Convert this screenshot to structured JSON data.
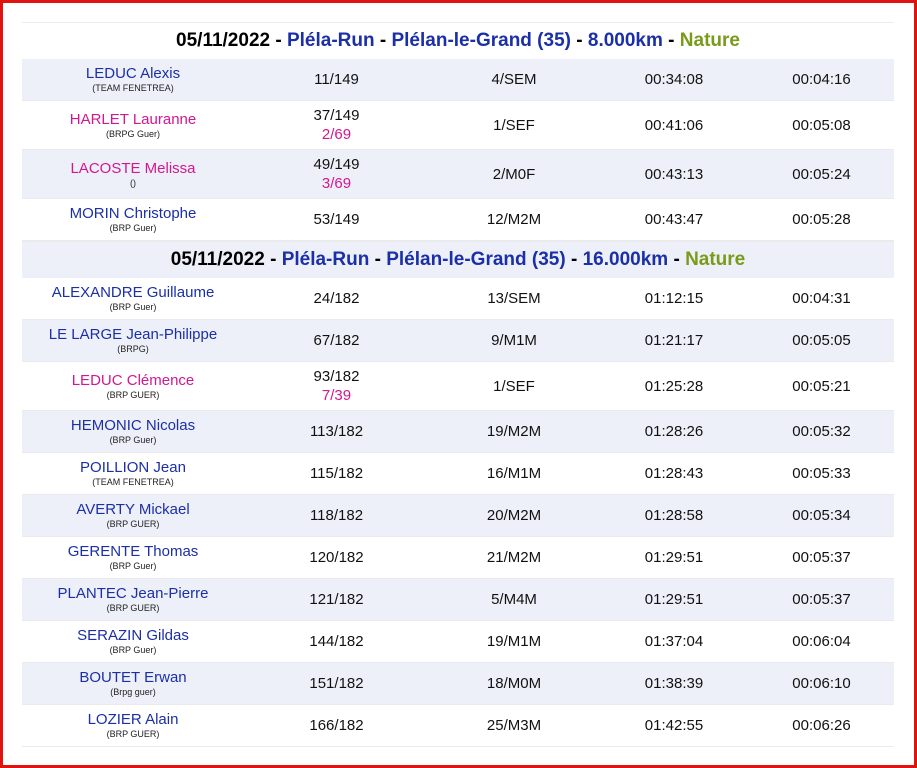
{
  "sections": [
    {
      "date": "05/11/2022",
      "race": "Pléla-Run",
      "place": "Plélan-le-Grand (35)",
      "distance": "8.000km",
      "type": "Nature",
      "rows": [
        {
          "name": "LEDUC Alexis",
          "club": "(TEAM FENETREA)",
          "rank": "11/149",
          "rank2": "",
          "cat": "4/SEM",
          "time": "00:34:08",
          "pace": "00:04:16",
          "f": false
        },
        {
          "name": "HARLET Lauranne",
          "club": "(BRPG Guer)",
          "rank": "37/149",
          "rank2": "2/69",
          "cat": "1/SEF",
          "time": "00:41:06",
          "pace": "00:05:08",
          "f": true
        },
        {
          "name": "LACOSTE Melissa",
          "club": "()",
          "rank": "49/149",
          "rank2": "3/69",
          "cat": "2/M0F",
          "time": "00:43:13",
          "pace": "00:05:24",
          "f": true
        },
        {
          "name": "MORIN Christophe",
          "club": "(BRP Guer)",
          "rank": "53/149",
          "rank2": "",
          "cat": "12/M2M",
          "time": "00:43:47",
          "pace": "00:05:28",
          "f": false
        }
      ]
    },
    {
      "date": "05/11/2022",
      "race": "Pléla-Run",
      "place": "Plélan-le-Grand (35)",
      "distance": "16.000km",
      "type": "Nature",
      "rows": [
        {
          "name": "ALEXANDRE Guillaume",
          "club": "(BRP Guer)",
          "rank": "24/182",
          "rank2": "",
          "cat": "13/SEM",
          "time": "01:12:15",
          "pace": "00:04:31",
          "f": false
        },
        {
          "name": "LE LARGE Jean-Philippe",
          "club": "(BRPG)",
          "rank": "67/182",
          "rank2": "",
          "cat": "9/M1M",
          "time": "01:21:17",
          "pace": "00:05:05",
          "f": false
        },
        {
          "name": "LEDUC Clémence",
          "club": "(BRP GUER)",
          "rank": "93/182",
          "rank2": "7/39",
          "cat": "1/SEF",
          "time": "01:25:28",
          "pace": "00:05:21",
          "f": true
        },
        {
          "name": "HEMONIC Nicolas",
          "club": "(BRP Guer)",
          "rank": "113/182",
          "rank2": "",
          "cat": "19/M2M",
          "time": "01:28:26",
          "pace": "00:05:32",
          "f": false
        },
        {
          "name": "POILLION Jean",
          "club": "(TEAM FENETREA)",
          "rank": "115/182",
          "rank2": "",
          "cat": "16/M1M",
          "time": "01:28:43",
          "pace": "00:05:33",
          "f": false
        },
        {
          "name": "AVERTY Mickael",
          "club": "(BRP GUER)",
          "rank": "118/182",
          "rank2": "",
          "cat": "20/M2M",
          "time": "01:28:58",
          "pace": "00:05:34",
          "f": false
        },
        {
          "name": "GERENTE Thomas",
          "club": "(BRP Guer)",
          "rank": "120/182",
          "rank2": "",
          "cat": "21/M2M",
          "time": "01:29:51",
          "pace": "00:05:37",
          "f": false
        },
        {
          "name": "PLANTEC Jean-Pierre",
          "club": "(BRP GUER)",
          "rank": "121/182",
          "rank2": "",
          "cat": "5/M4M",
          "time": "01:29:51",
          "pace": "00:05:37",
          "f": false
        },
        {
          "name": "SERAZIN Gildas",
          "club": "(BRP Guer)",
          "rank": "144/182",
          "rank2": "",
          "cat": "19/M1M",
          "time": "01:37:04",
          "pace": "00:06:04",
          "f": false
        },
        {
          "name": "BOUTET Erwan",
          "club": "(Brpg guer)",
          "rank": "151/182",
          "rank2": "",
          "cat": "18/M0M",
          "time": "01:38:39",
          "pace": "00:06:10",
          "f": false
        },
        {
          "name": "LOZIER Alain",
          "club": "(BRP GUER)",
          "rank": "166/182",
          "rank2": "",
          "cat": "25/M3M",
          "time": "01:42:55",
          "pace": "00:06:26",
          "f": false
        }
      ]
    }
  ],
  "colors": {
    "border": "#e0140f",
    "male": "#1a2fa8",
    "female": "#d3178f",
    "nature": "#7a9a1a",
    "shade": "#eef0f9"
  }
}
